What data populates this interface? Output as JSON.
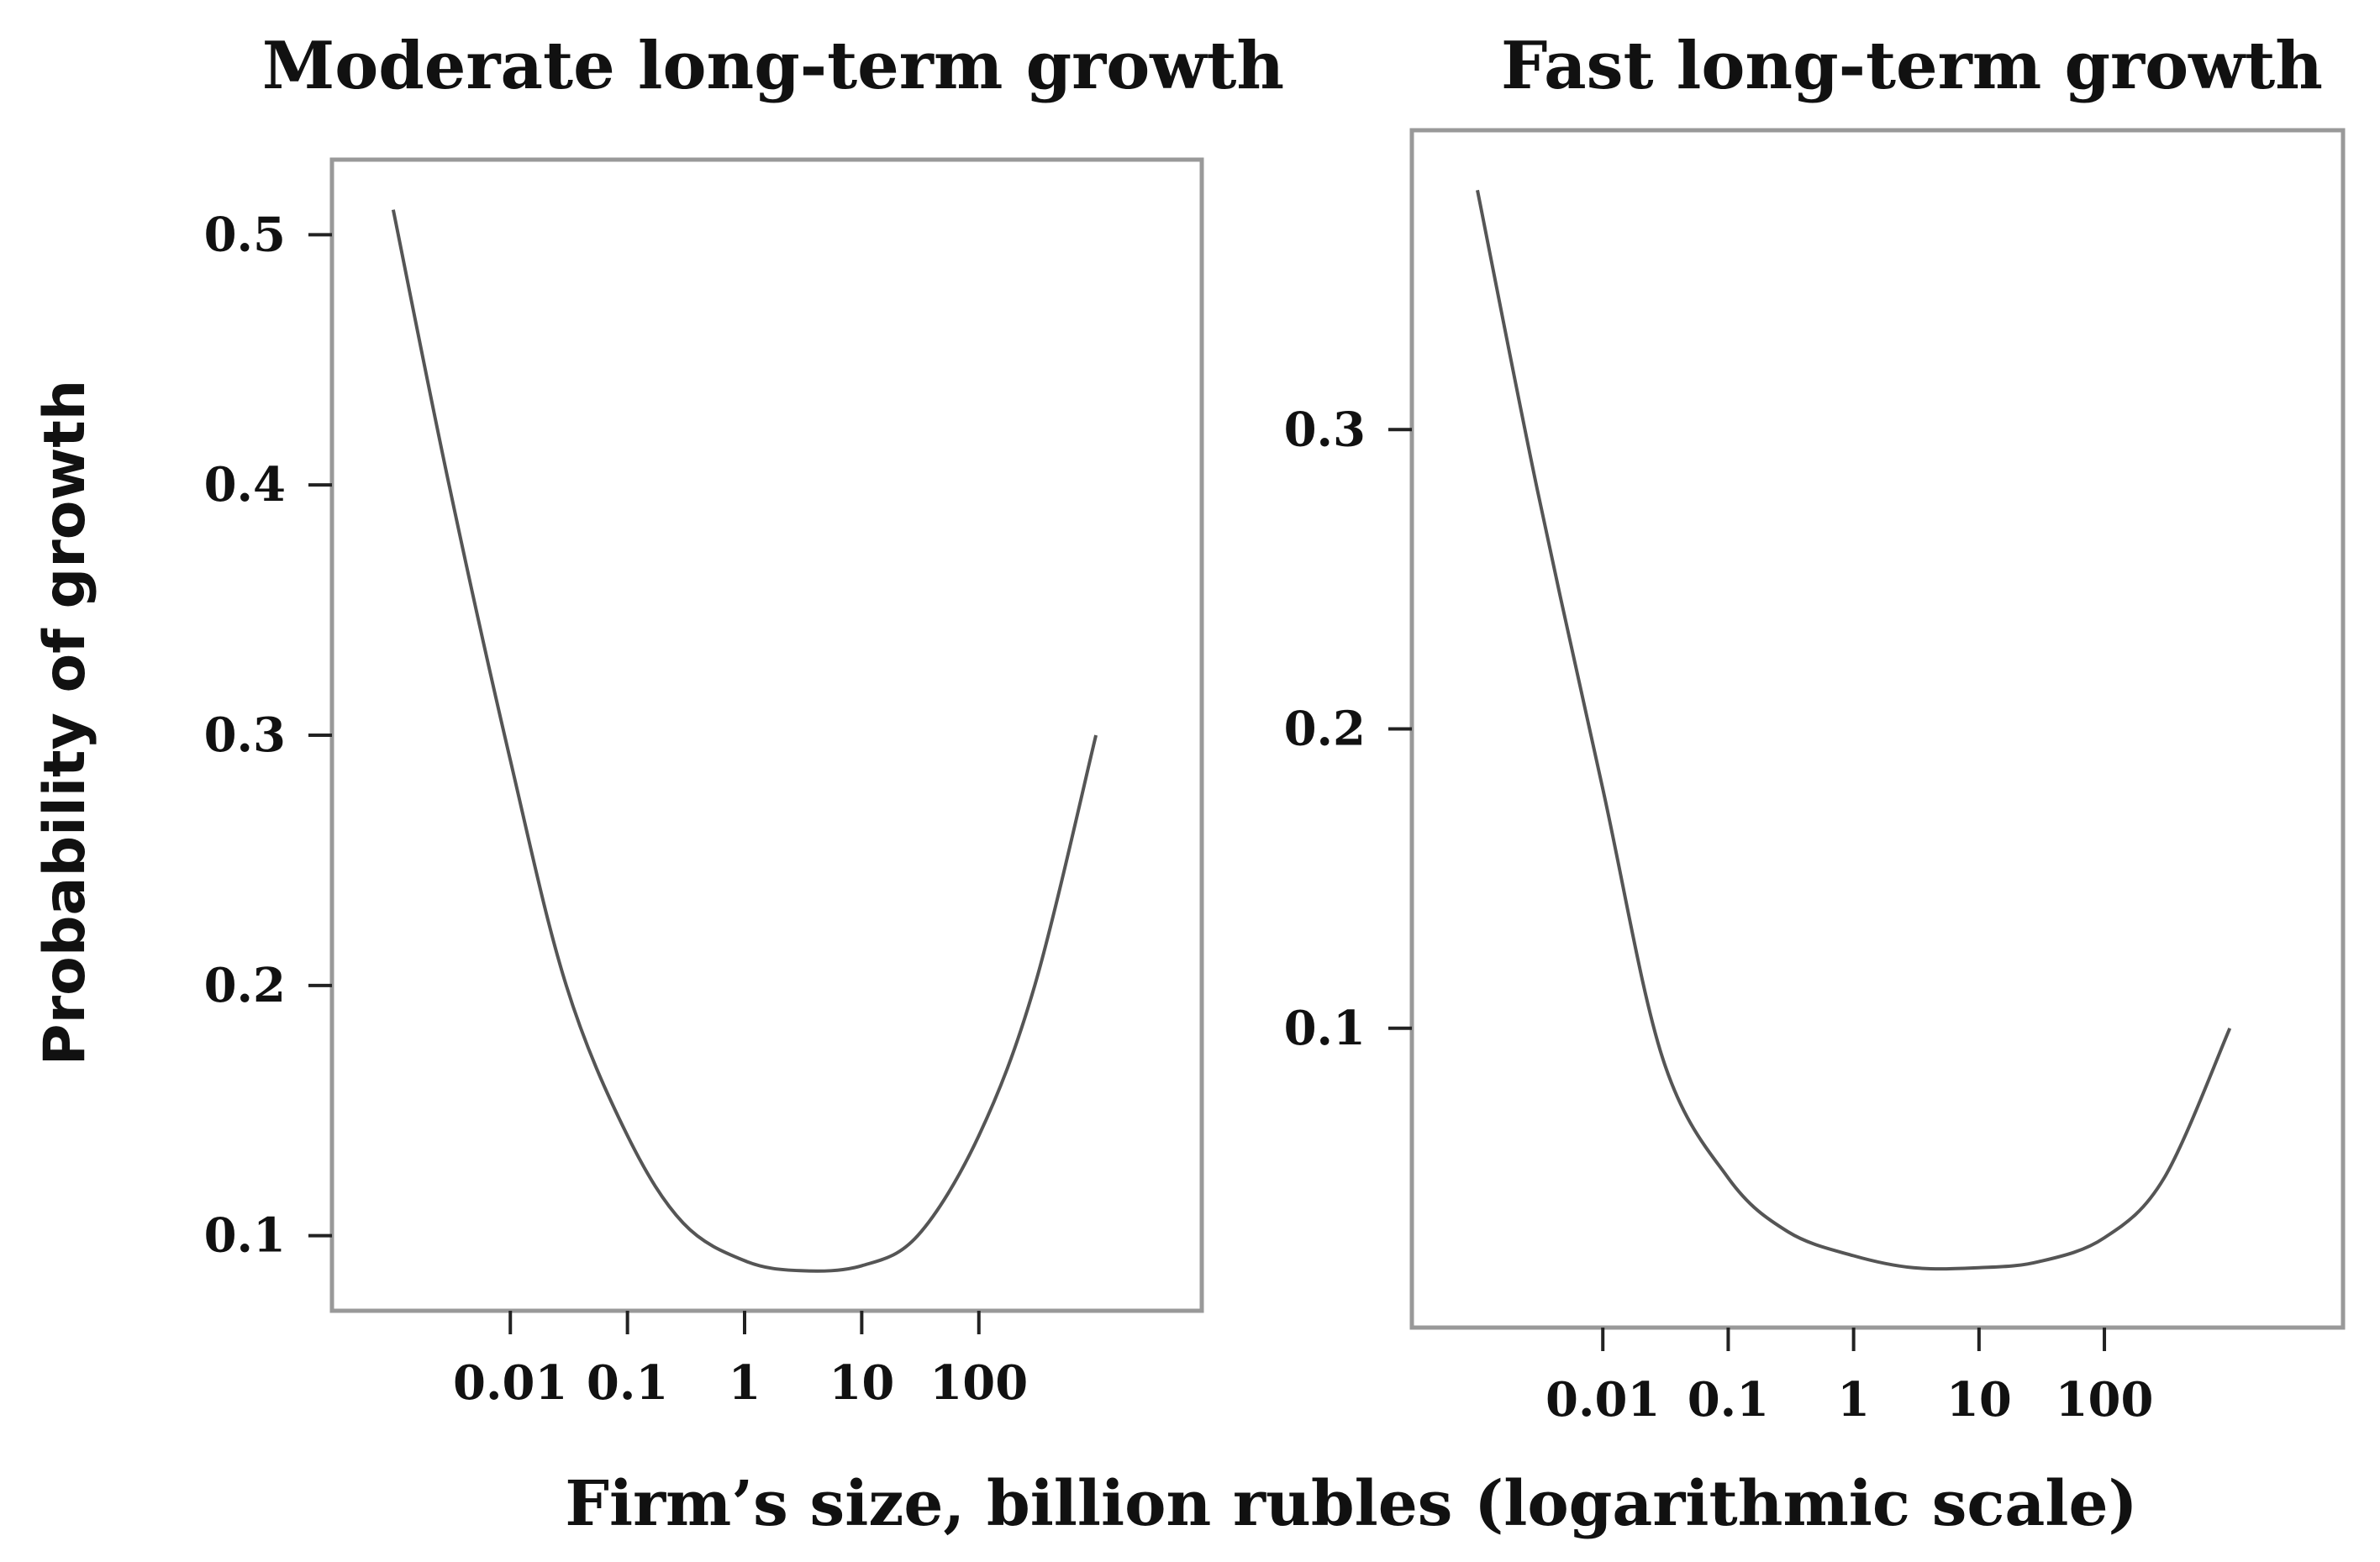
{
  "figure": {
    "ylabel": "Probability of growth",
    "xlabel": "Firm’s size, billion rubles (logarithmic scale)"
  },
  "chart_data": [
    {
      "type": "line",
      "title": "Moderate long-term growth",
      "xlabel": "Firm’s size, billion rubles (logarithmic scale)",
      "ylabel": "Probability of growth",
      "xscale": "log",
      "xlim": [
        0.0003,
        8000
      ],
      "ylim": [
        0.07,
        0.53
      ],
      "xticks": [
        0.01,
        0.1,
        1,
        10,
        100
      ],
      "xtick_labels": [
        "0.01",
        "0.1",
        "1",
        "10",
        "100"
      ],
      "yticks": [
        0.1,
        0.2,
        0.3,
        0.4,
        0.5
      ],
      "ytick_labels": [
        "0.1",
        "0.2",
        "0.3",
        "0.4",
        "0.5"
      ],
      "series": [
        {
          "name": "Moderate long-term growth",
          "x": [
            0.001,
            0.003,
            0.01,
            0.03,
            0.1,
            0.3,
            1,
            3,
            10,
            30,
            100,
            300,
            1000
          ],
          "y": [
            0.51,
            0.4,
            0.29,
            0.2,
            0.14,
            0.105,
            0.09,
            0.086,
            0.088,
            0.1,
            0.14,
            0.2,
            0.3
          ]
        }
      ]
    },
    {
      "type": "line",
      "title": "Fast long-term growth",
      "xlabel": "Firm’s size, billion rubles (logarithmic scale)",
      "ylabel": "Probability of growth",
      "xscale": "log",
      "xlim": [
        0.0003,
        8000
      ],
      "ylim": [
        0.0,
        0.4
      ],
      "xticks": [
        0.01,
        0.1,
        1,
        10,
        100
      ],
      "xtick_labels": [
        "0.01",
        "0.1",
        "1",
        "10",
        "100"
      ],
      "yticks": [
        0.1,
        0.2,
        0.3
      ],
      "ytick_labels": [
        "0.1",
        "0.2",
        "0.3"
      ],
      "series": [
        {
          "name": "Fast long-term growth",
          "x": [
            0.001,
            0.003,
            0.01,
            0.03,
            0.1,
            0.3,
            1,
            3,
            10,
            30,
            100,
            300,
            1000
          ],
          "y": [
            0.38,
            0.28,
            0.18,
            0.09,
            0.05,
            0.032,
            0.024,
            0.02,
            0.02,
            0.022,
            0.03,
            0.05,
            0.1
          ]
        }
      ]
    }
  ]
}
